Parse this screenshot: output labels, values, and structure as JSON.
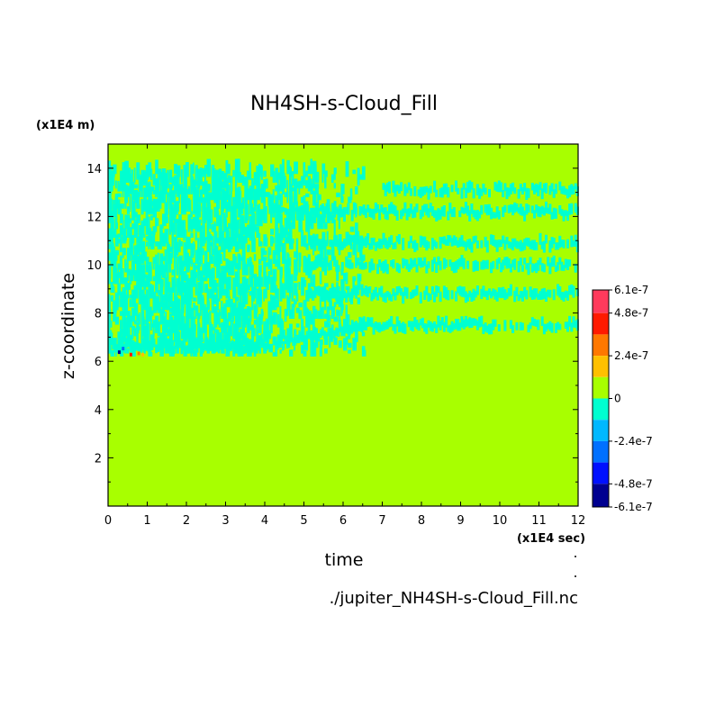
{
  "chart_data": {
    "type": "heatmap",
    "title": "NH4SH-s-Cloud_Fill",
    "xlabel": "time",
    "ylabel": "z-coordinate",
    "x_unit": "(x1E4 sec)",
    "y_unit": "(x1E4 m)",
    "source_file": "./jupiter_NH4SH-s-Cloud_Fill.nc",
    "xlim": [
      0,
      12
    ],
    "ylim": [
      0,
      15
    ],
    "x_ticks": [
      "0",
      "1",
      "2",
      "3",
      "4",
      "5",
      "6",
      "7",
      "8",
      "9",
      "10",
      "11",
      "12"
    ],
    "y_ticks": [
      "2",
      "4",
      "6",
      "8",
      "10",
      "12",
      "14"
    ],
    "colorbar": {
      "tick_labels": [
        "6.1e-7",
        "4.8e-7",
        "2.4e-7",
        "0",
        "-2.4e-7",
        "-4.8e-7",
        "-6.1e-7"
      ],
      "levels": [
        6.1e-07,
        4.8e-07,
        3.6e-07,
        2.4e-07,
        1.2e-07,
        0,
        -1.2e-07,
        -2.4e-07,
        -3.6e-07,
        -4.8e-07,
        -6.1e-07
      ],
      "colors": [
        "#ff3a5c",
        "#ff1a00",
        "#ff7800",
        "#ffc000",
        "#a8ff00",
        "#00ffd0",
        "#00b8ff",
        "#0070ff",
        "#0010ff",
        "#000090"
      ]
    },
    "background_value": 0,
    "background_color": "#a8ff00",
    "negative_region_color": "#00ffd0",
    "features": {
      "turbulent_region": {
        "t_range": [
          0,
          6.5
        ],
        "z_range": [
          6.2,
          13.8
        ],
        "value_range": [
          -1.2e-07,
          0
        ]
      },
      "bands": [
        {
          "z": 7.5,
          "t_range": [
            6,
            12
          ]
        },
        {
          "z": 8.8,
          "t_range": [
            5,
            12
          ]
        },
        {
          "z": 10.0,
          "t_range": [
            5,
            12
          ]
        },
        {
          "z": 10.9,
          "t_range": [
            5,
            12
          ]
        },
        {
          "z": 12.2,
          "t_range": [
            4,
            12
          ]
        },
        {
          "z": 13.1,
          "t_range": [
            7,
            12
          ]
        }
      ],
      "extreme_spot": {
        "t": 0.25,
        "z": 6.3,
        "value_range": [
          -6.1e-07,
          6.1e-07
        ]
      }
    }
  }
}
